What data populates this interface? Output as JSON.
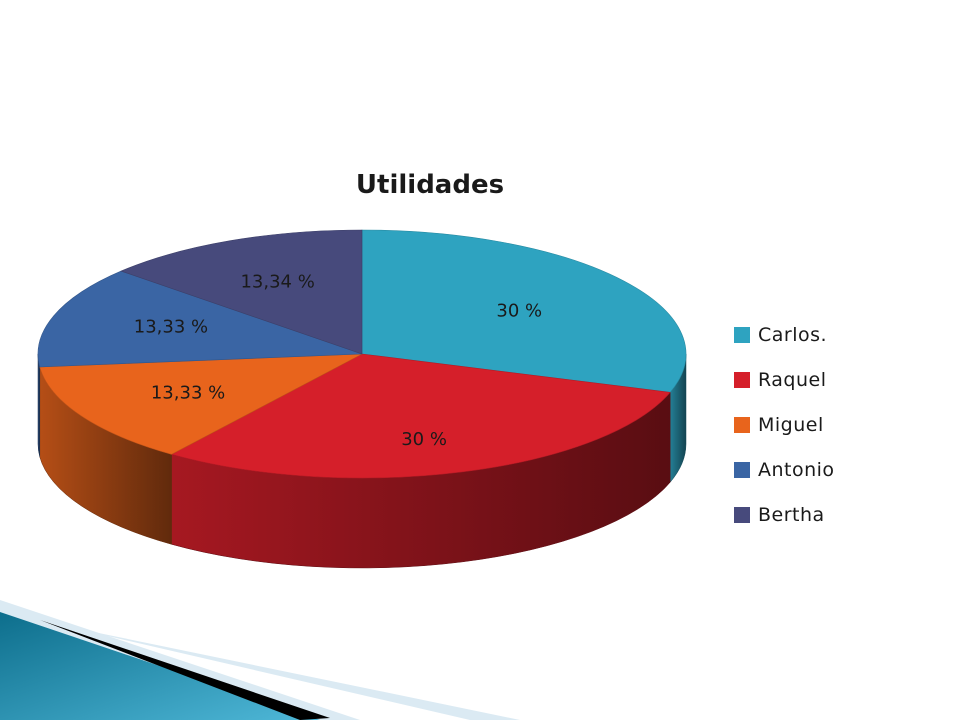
{
  "chart_data": {
    "type": "pie",
    "title": "Utilidades",
    "categories": [
      "Carlos.",
      "Raquel",
      "Miguel",
      "Antonio",
      "Bertha"
    ],
    "values": [
      30,
      30,
      13.33,
      13.33,
      13.34
    ],
    "data_labels": [
      "30 %",
      "30 %",
      "13,33 %",
      "13,33 %",
      "13,34 %"
    ],
    "colors": [
      "#2ea3c0",
      "#d51f2a",
      "#e8641c",
      "#3a65a4",
      "#474a7c"
    ],
    "legend_position": "right",
    "style": "3d"
  },
  "decoration": {
    "footer_colors": [
      "#0d6e8c",
      "#4fb8d8",
      "#000000",
      "#dbeaf3"
    ]
  }
}
